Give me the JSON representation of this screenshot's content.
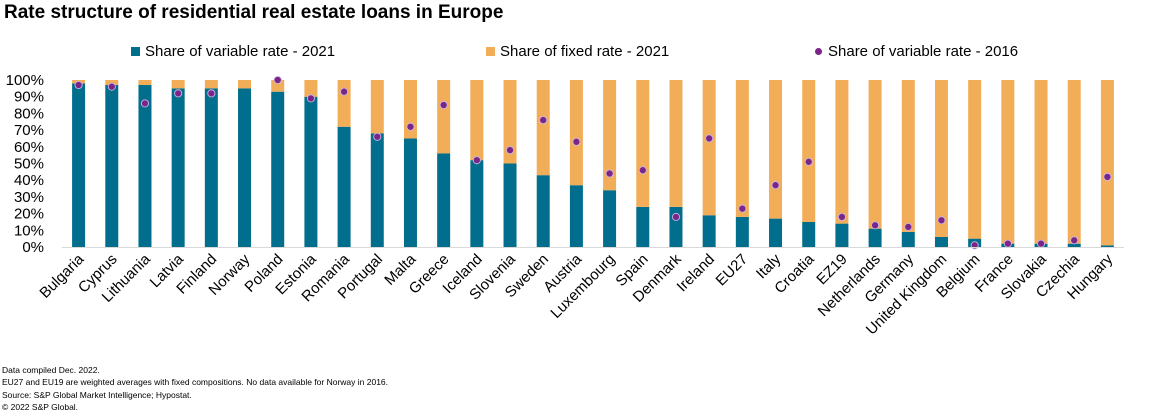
{
  "chart_data": {
    "type": "bar",
    "title": "Rate structure of residential real estate loans in Europe",
    "categories": [
      "Bulgaria",
      "Cyprus",
      "Lithuania",
      "Latvia",
      "Finland",
      "Norway",
      "Poland",
      "Estonia",
      "Romania",
      "Portugal",
      "Malta",
      "Greece",
      "Iceland",
      "Slovenia",
      "Sweden",
      "Austria",
      "Luxembourg",
      "Spain",
      "Denmark",
      "Ireland",
      "EU27",
      "Italy",
      "Croatia",
      "EZ19",
      "Netherlands",
      "Germany",
      "United Kingdom",
      "Belgium",
      "France",
      "Slovakia",
      "Czechia",
      "Hungary"
    ],
    "series": [
      {
        "name": "Share of variable rate - 2021",
        "kind": "stacked-bar",
        "color": "#006e8c",
        "values": [
          98,
          97,
          97,
          95,
          95,
          95,
          93,
          90,
          72,
          68,
          65,
          56,
          52,
          50,
          43,
          37,
          34,
          24,
          24,
          19,
          18,
          17,
          15,
          14,
          11,
          9,
          6,
          5,
          2,
          2,
          2,
          1
        ]
      },
      {
        "name": "Share of fixed rate - 2021",
        "kind": "stacked-bar",
        "color": "#f2ad59",
        "values": [
          2,
          3,
          3,
          5,
          5,
          5,
          7,
          10,
          28,
          32,
          35,
          44,
          48,
          50,
          57,
          63,
          66,
          76,
          76,
          81,
          82,
          83,
          85,
          86,
          89,
          91,
          94,
          95,
          98,
          98,
          98,
          99
        ]
      },
      {
        "name": "Share of variable rate - 2016",
        "kind": "marker",
        "color": "#7a2587",
        "values": [
          97,
          96,
          86,
          92,
          92,
          null,
          100,
          89,
          93,
          66,
          72,
          85,
          52,
          58,
          76,
          63,
          44,
          46,
          18,
          65,
          23,
          37,
          51,
          18,
          13,
          12,
          16,
          1,
          2,
          2,
          4,
          42
        ]
      }
    ],
    "ylim": [
      0,
      100
    ],
    "yticks": [
      "0%",
      "10%",
      "20%",
      "30%",
      "40%",
      "50%",
      "60%",
      "70%",
      "80%",
      "90%",
      "100%"
    ],
    "xlabel": "",
    "ylabel": "",
    "legend": "top"
  },
  "footnotes": [
    "Data compiled Dec. 2022.",
    "EU27 and EU19 are weighted averages with fixed compositions. No data available for Norway in 2016.",
    "Source: S&P Global Market Intelligence; Hypostat.",
    "© 2022 S&P Global."
  ]
}
